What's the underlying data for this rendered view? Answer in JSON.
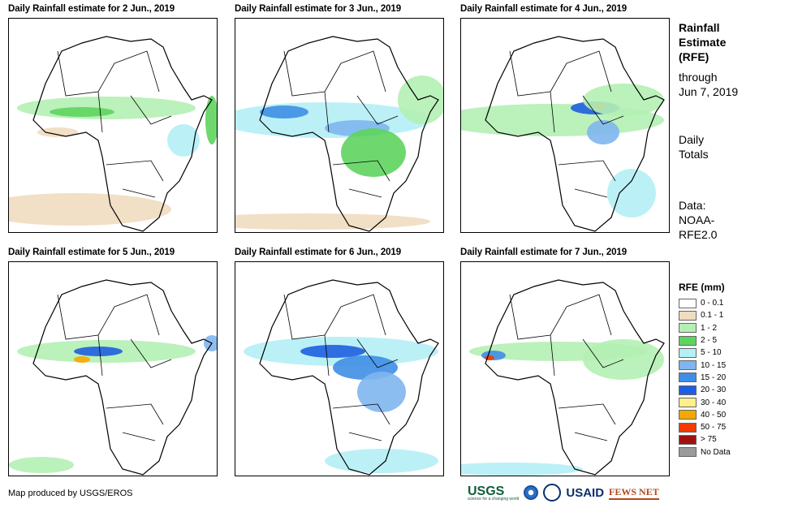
{
  "panels": [
    {
      "title": "Daily Rainfall estimate for 2 Jun., 2019"
    },
    {
      "title": "Daily Rainfall estimate for 3 Jun., 2019"
    },
    {
      "title": "Daily Rainfall estimate for 4 Jun., 2019"
    },
    {
      "title": "Daily Rainfall estimate for 5 Jun., 2019"
    },
    {
      "title": "Daily Rainfall estimate for 6 Jun., 2019"
    },
    {
      "title": "Daily Rainfall estimate for 7 Jun., 2019"
    }
  ],
  "sidebar": {
    "title_line1": "Rainfall",
    "title_line2": "Estimate",
    "title_line3": "(RFE)",
    "through_line1": "through",
    "through_line2": "Jun 7, 2019",
    "daily_line1": "Daily",
    "daily_line2": "Totals",
    "data_line1": "Data:",
    "data_line2": "NOAA-",
    "data_line3": "RFE2.0"
  },
  "legend": {
    "title": "RFE (mm)",
    "items": [
      {
        "label": "0 - 0.1",
        "color": "#ffffff"
      },
      {
        "label": "0.1 - 1",
        "color": "#f0dcc0"
      },
      {
        "label": "1 - 2",
        "color": "#b4f0b4"
      },
      {
        "label": "2 - 5",
        "color": "#5ed45e"
      },
      {
        "label": "5 - 10",
        "color": "#b4f0f5"
      },
      {
        "label": "10 - 15",
        "color": "#7fb6ee"
      },
      {
        "label": "15 - 20",
        "color": "#3f8ee6"
      },
      {
        "label": "20 - 30",
        "color": "#1f5ee0"
      },
      {
        "label": "30 - 40",
        "color": "#fff08a"
      },
      {
        "label": "40 - 50",
        "color": "#f5a800"
      },
      {
        "label": "50 - 75",
        "color": "#f03c00"
      },
      {
        "label": "> 75",
        "color": "#a01010"
      },
      {
        "label": "No Data",
        "color": "#9a9a9a"
      }
    ]
  },
  "footer": {
    "credit": "Map produced by USGS/EROS",
    "logo_usgs": "USGS",
    "logo_usgs_tagline": "science for a changing world",
    "logo_usaid": "USAID",
    "logo_fews": "FEWS NET"
  }
}
